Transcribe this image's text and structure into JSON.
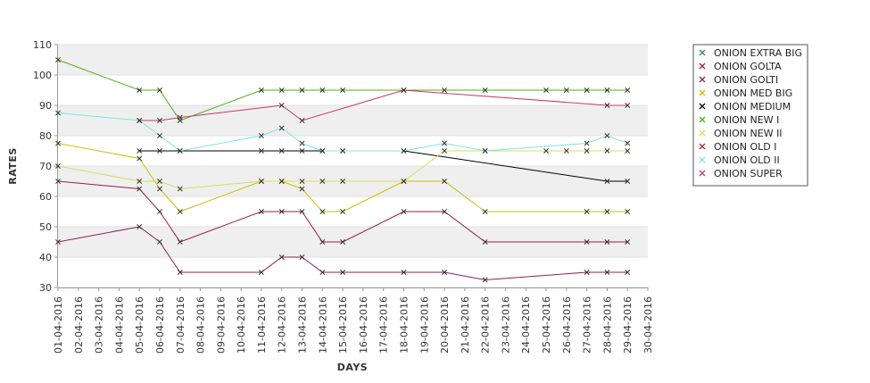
{
  "chart_data": {
    "type": "line",
    "xlabel": "DAYS",
    "ylabel": "RATES",
    "ylim": [
      30,
      110
    ],
    "yticks": [
      30,
      40,
      50,
      60,
      70,
      80,
      90,
      100,
      110
    ],
    "categories": [
      "01-04-2016",
      "02-04-2016",
      "03-04-2016",
      "04-04-2016",
      "05-04-2016",
      "06-04-2016",
      "07-04-2016",
      "08-04-2016",
      "09-04-2016",
      "10-04-2016",
      "11-04-2016",
      "12-04-2016",
      "13-04-2016",
      "14-04-2016",
      "15-04-2016",
      "16-04-2016",
      "17-04-2016",
      "18-04-2016",
      "19-04-2016",
      "20-04-2016",
      "21-04-2016",
      "22-04-2016",
      "23-04-2016",
      "24-04-2016",
      "25-04-2016",
      "26-04-2016",
      "27-04-2016",
      "28-04-2016",
      "29-04-2016",
      "30-04-2016"
    ],
    "grid": true,
    "legend_position": "right",
    "series": [
      {
        "name": "ONION EXTRA BIG",
        "color": "#2e8b57",
        "points": []
      },
      {
        "name": "ONION GOLTA",
        "color": "#9b1b47",
        "points": [
          [
            "01-04-2016",
            65
          ],
          [
            "05-04-2016",
            62.5
          ],
          [
            "06-04-2016",
            55
          ],
          [
            "07-04-2016",
            45
          ],
          [
            "11-04-2016",
            55
          ],
          [
            "12-04-2016",
            55
          ],
          [
            "13-04-2016",
            55
          ],
          [
            "14-04-2016",
            45
          ],
          [
            "15-04-2016",
            45
          ],
          [
            "18-04-2016",
            55
          ],
          [
            "20-04-2016",
            55
          ],
          [
            "22-04-2016",
            45
          ],
          [
            "27-04-2016",
            45
          ],
          [
            "28-04-2016",
            45
          ],
          [
            "29-04-2016",
            45
          ]
        ]
      },
      {
        "name": "ONION GOLTI",
        "color": "#8b2252",
        "points": [
          [
            "01-04-2016",
            45
          ],
          [
            "05-04-2016",
            50
          ],
          [
            "06-04-2016",
            45
          ],
          [
            "07-04-2016",
            35
          ],
          [
            "11-04-2016",
            35
          ],
          [
            "12-04-2016",
            40
          ],
          [
            "13-04-2016",
            40
          ],
          [
            "14-04-2016",
            35
          ],
          [
            "15-04-2016",
            35
          ],
          [
            "18-04-2016",
            35
          ],
          [
            "20-04-2016",
            35
          ],
          [
            "22-04-2016",
            32.5
          ],
          [
            "27-04-2016",
            35
          ],
          [
            "28-04-2016",
            35
          ],
          [
            "29-04-2016",
            35
          ]
        ]
      },
      {
        "name": "ONION MED BIG",
        "color": "#c8c000",
        "points": [
          [
            "01-04-2016",
            77.5
          ],
          [
            "05-04-2016",
            72.5
          ],
          [
            "06-04-2016",
            62.5
          ],
          [
            "07-04-2016",
            55
          ],
          [
            "11-04-2016",
            65
          ],
          [
            "12-04-2016",
            65
          ],
          [
            "13-04-2016",
            62.5
          ],
          [
            "14-04-2016",
            55
          ],
          [
            "15-04-2016",
            55
          ],
          [
            "18-04-2016",
            65
          ],
          [
            "20-04-2016",
            65
          ],
          [
            "22-04-2016",
            55
          ],
          [
            "27-04-2016",
            55
          ],
          [
            "28-04-2016",
            55
          ],
          [
            "29-04-2016",
            55
          ]
        ]
      },
      {
        "name": "ONION MEDIUM",
        "color": "#000000",
        "points": [
          [
            "05-04-2016",
            75
          ],
          [
            "06-04-2016",
            75
          ],
          [
            "07-04-2016",
            75
          ],
          [
            "11-04-2016",
            75
          ],
          [
            "12-04-2016",
            75
          ],
          [
            "13-04-2016",
            75
          ],
          [
            "14-04-2016",
            75
          ],
          [
            "15-04-2016",
            75
          ],
          [
            "18-04-2016",
            75
          ],
          [
            "28-04-2016",
            65
          ],
          [
            "29-04-2016",
            65
          ]
        ]
      },
      {
        "name": "ONION NEW I",
        "color": "#4caf1a",
        "points": [
          [
            "01-04-2016",
            105
          ],
          [
            "05-04-2016",
            95
          ],
          [
            "06-04-2016",
            95
          ],
          [
            "07-04-2016",
            85
          ],
          [
            "11-04-2016",
            95
          ],
          [
            "12-04-2016",
            95
          ],
          [
            "13-04-2016",
            95
          ],
          [
            "14-04-2016",
            95
          ],
          [
            "15-04-2016",
            95
          ],
          [
            "18-04-2016",
            95
          ],
          [
            "20-04-2016",
            95
          ],
          [
            "22-04-2016",
            95
          ],
          [
            "25-04-2016",
            95
          ],
          [
            "26-04-2016",
            95
          ],
          [
            "27-04-2016",
            95
          ],
          [
            "28-04-2016",
            95
          ],
          [
            "29-04-2016",
            95
          ]
        ]
      },
      {
        "name": "ONION NEW II",
        "color": "#d4e05a",
        "points": [
          [
            "01-04-2016",
            70
          ],
          [
            "05-04-2016",
            65
          ],
          [
            "06-04-2016",
            65
          ],
          [
            "07-04-2016",
            62.5
          ],
          [
            "11-04-2016",
            65
          ],
          [
            "12-04-2016",
            65
          ],
          [
            "13-04-2016",
            65
          ],
          [
            "14-04-2016",
            65
          ],
          [
            "15-04-2016",
            65
          ],
          [
            "18-04-2016",
            65
          ],
          [
            "20-04-2016",
            75
          ],
          [
            "22-04-2016",
            75
          ],
          [
            "25-04-2016",
            75
          ],
          [
            "26-04-2016",
            75
          ],
          [
            "27-04-2016",
            75
          ],
          [
            "28-04-2016",
            75
          ],
          [
            "29-04-2016",
            75
          ]
        ]
      },
      {
        "name": "ONION OLD I",
        "color": "#b3262e",
        "points": []
      },
      {
        "name": "ONION OLD II",
        "color": "#7fe3e3",
        "points": [
          [
            "01-04-2016",
            87.5
          ],
          [
            "05-04-2016",
            85
          ],
          [
            "06-04-2016",
            80
          ],
          [
            "07-04-2016",
            75
          ],
          [
            "11-04-2016",
            80
          ],
          [
            "12-04-2016",
            82.5
          ],
          [
            "13-04-2016",
            77.5
          ],
          [
            "14-04-2016",
            75
          ],
          [
            "15-04-2016",
            75
          ],
          [
            "18-04-2016",
            75
          ],
          [
            "20-04-2016",
            77.5
          ],
          [
            "22-04-2016",
            75
          ],
          [
            "27-04-2016",
            77.5
          ],
          [
            "28-04-2016",
            80
          ],
          [
            "29-04-2016",
            77.5
          ]
        ]
      },
      {
        "name": "ONION SUPER",
        "color": "#c8386a",
        "points": [
          [
            "05-04-2016",
            85
          ],
          [
            "06-04-2016",
            85
          ],
          [
            "07-04-2016",
            86
          ],
          [
            "12-04-2016",
            90
          ],
          [
            "13-04-2016",
            85
          ],
          [
            "18-04-2016",
            95
          ],
          [
            "28-04-2016",
            90
          ],
          [
            "29-04-2016",
            90
          ]
        ]
      }
    ]
  }
}
